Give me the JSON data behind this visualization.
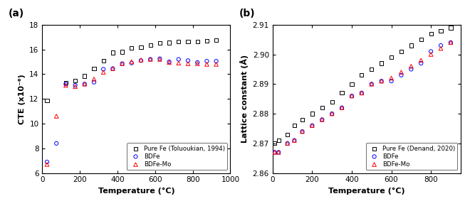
{
  "panel_a": {
    "title": "(a)",
    "xlabel": "Temperature (°C)",
    "ylabel": "CTE (x10⁻⁶)",
    "xlim": [
      0,
      1000
    ],
    "ylim": [
      6,
      18
    ],
    "yticks": [
      6,
      8,
      10,
      12,
      14,
      16,
      18
    ],
    "xticks": [
      0,
      200,
      400,
      600,
      800,
      1000
    ],
    "pure_fe_x": [
      25,
      125,
      175,
      225,
      275,
      325,
      375,
      425,
      475,
      525,
      575,
      625,
      675,
      725,
      775,
      825,
      875,
      925
    ],
    "pure_fe_y": [
      11.85,
      13.3,
      13.5,
      13.85,
      14.45,
      15.1,
      15.75,
      15.8,
      16.1,
      16.2,
      16.35,
      16.5,
      16.55,
      16.65,
      16.65,
      16.65,
      16.7,
      16.75
    ],
    "bdfe_x": [
      25,
      75,
      125,
      175,
      225,
      275,
      325,
      375,
      425,
      475,
      525,
      575,
      625,
      675,
      725,
      775,
      825,
      875,
      925
    ],
    "bdfe_y": [
      6.9,
      8.4,
      13.2,
      13.1,
      13.2,
      13.35,
      14.4,
      14.45,
      14.85,
      14.9,
      15.1,
      15.2,
      15.25,
      15.0,
      15.2,
      15.1,
      14.95,
      15.05,
      15.05
    ],
    "bdfe_mo_x": [
      25,
      75,
      125,
      175,
      225,
      275,
      325,
      375,
      425,
      475,
      525,
      575,
      625,
      675,
      725,
      775,
      825,
      875,
      925
    ],
    "bdfe_mo_y": [
      6.7,
      10.6,
      13.1,
      13.0,
      13.2,
      13.6,
      14.15,
      14.45,
      14.85,
      15.0,
      15.15,
      15.2,
      15.2,
      14.95,
      14.9,
      14.85,
      14.85,
      14.8,
      14.8
    ],
    "legend_labels": [
      "Pure Fe (Toluoukian, 1994)",
      "BDFe",
      "BDFe-Mo"
    ],
    "pure_fe_color": "black",
    "bdfe_color": "blue",
    "bdfe_mo_color": "red"
  },
  "panel_b": {
    "title": "(b)",
    "xlabel": "Temperature (°C)",
    "ylabel": "Lattice constant (Å)",
    "xlim": [
      0,
      950
    ],
    "ylim": [
      2.86,
      2.91
    ],
    "yticks": [
      2.86,
      2.87,
      2.88,
      2.89,
      2.9,
      2.91
    ],
    "xticks": [
      0,
      200,
      400,
      600,
      800
    ],
    "pure_fe_x": [
      10,
      30,
      75,
      110,
      150,
      200,
      250,
      300,
      350,
      400,
      450,
      500,
      550,
      600,
      650,
      700,
      750,
      800,
      850,
      900
    ],
    "pure_fe_y": [
      2.87,
      2.871,
      2.873,
      2.876,
      2.878,
      2.88,
      2.882,
      2.884,
      2.887,
      2.89,
      2.893,
      2.895,
      2.897,
      2.899,
      2.901,
      2.903,
      2.905,
      2.907,
      2.908,
      2.909
    ],
    "bdfe_x": [
      10,
      30,
      75,
      110,
      150,
      200,
      250,
      300,
      350,
      400,
      450,
      500,
      550,
      600,
      650,
      700,
      750,
      800,
      850,
      900
    ],
    "bdfe_y": [
      2.867,
      2.867,
      2.87,
      2.871,
      2.874,
      2.876,
      2.878,
      2.88,
      2.882,
      2.886,
      2.887,
      2.89,
      2.891,
      2.891,
      2.893,
      2.895,
      2.897,
      2.901,
      2.903,
      2.904
    ],
    "bdfe_mo_x": [
      10,
      30,
      75,
      110,
      150,
      200,
      250,
      300,
      350,
      400,
      450,
      500,
      550,
      600,
      650,
      700,
      750,
      800,
      850,
      900
    ],
    "bdfe_mo_y": [
      2.867,
      2.867,
      2.87,
      2.871,
      2.874,
      2.876,
      2.878,
      2.88,
      2.882,
      2.886,
      2.887,
      2.89,
      2.891,
      2.892,
      2.894,
      2.896,
      2.898,
      2.9,
      2.902,
      2.904
    ],
    "legend_labels": [
      "Pure Fe (Denand, 2020)",
      "BDFe",
      "BDFe-Mo"
    ],
    "pure_fe_color": "black",
    "bdfe_color": "blue",
    "bdfe_mo_color": "red"
  }
}
